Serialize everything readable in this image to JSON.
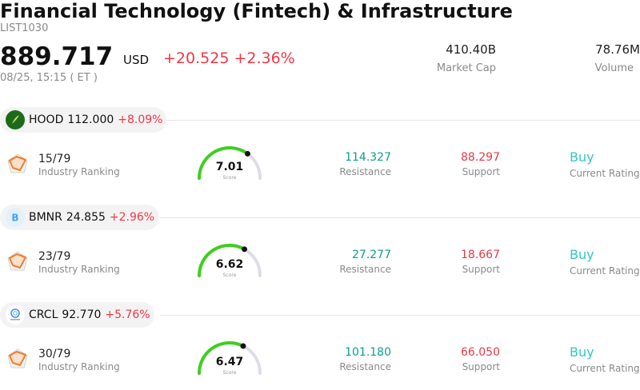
{
  "header": {
    "title": "Financial Technology (Fintech) & Infrastructure",
    "code": "LIST1030",
    "price": "889.717",
    "currency": "USD",
    "change": "+20.525",
    "change_pct": "+2.36%",
    "timestamp": "08/25, 15:15 ( ET )",
    "market_cap_value": "410.40B",
    "market_cap_label": "Market Cap",
    "volume_value": "78.76M",
    "volume_label": "Volume"
  },
  "colors": {
    "up_red": "#f23645",
    "resistance_green": "#0e9e8a",
    "rating_teal": "#31c7c7",
    "gauge_green": "#3fce1f"
  },
  "stocks": [
    {
      "ticker": "HOOD",
      "price": "112.000",
      "change_pct": "+8.09%",
      "logo_icon": "robinhood-feather-icon",
      "rank": "15/79",
      "rank_label": "Industry Ranking",
      "score": "7.01",
      "score_value": 7.01,
      "score_label": "Score",
      "resistance": "114.327",
      "resistance_label": "Resistance",
      "support": "88.297",
      "support_label": "Support",
      "rating": "Buy",
      "rating_label": "Current Rating"
    },
    {
      "ticker": "BMNR",
      "price": "24.855",
      "change_pct": "+2.96%",
      "logo_icon": "letter-b-icon",
      "rank": "23/79",
      "rank_label": "Industry Ranking",
      "score": "6.62",
      "score_value": 6.62,
      "score_label": "Score",
      "resistance": "27.277",
      "resistance_label": "Resistance",
      "support": "18.667",
      "support_label": "Support",
      "rating": "Buy",
      "rating_label": "Current Rating"
    },
    {
      "ticker": "CRCL",
      "price": "92.770",
      "change_pct": "+5.76%",
      "logo_icon": "circle-spiral-icon",
      "rank": "30/79",
      "rank_label": "Industry Ranking",
      "score": "6.47",
      "score_value": 6.47,
      "score_label": "Score",
      "resistance": "101.180",
      "resistance_label": "Resistance",
      "support": "66.050",
      "support_label": "Support",
      "rating": "Buy",
      "rating_label": "Current Rating"
    }
  ]
}
